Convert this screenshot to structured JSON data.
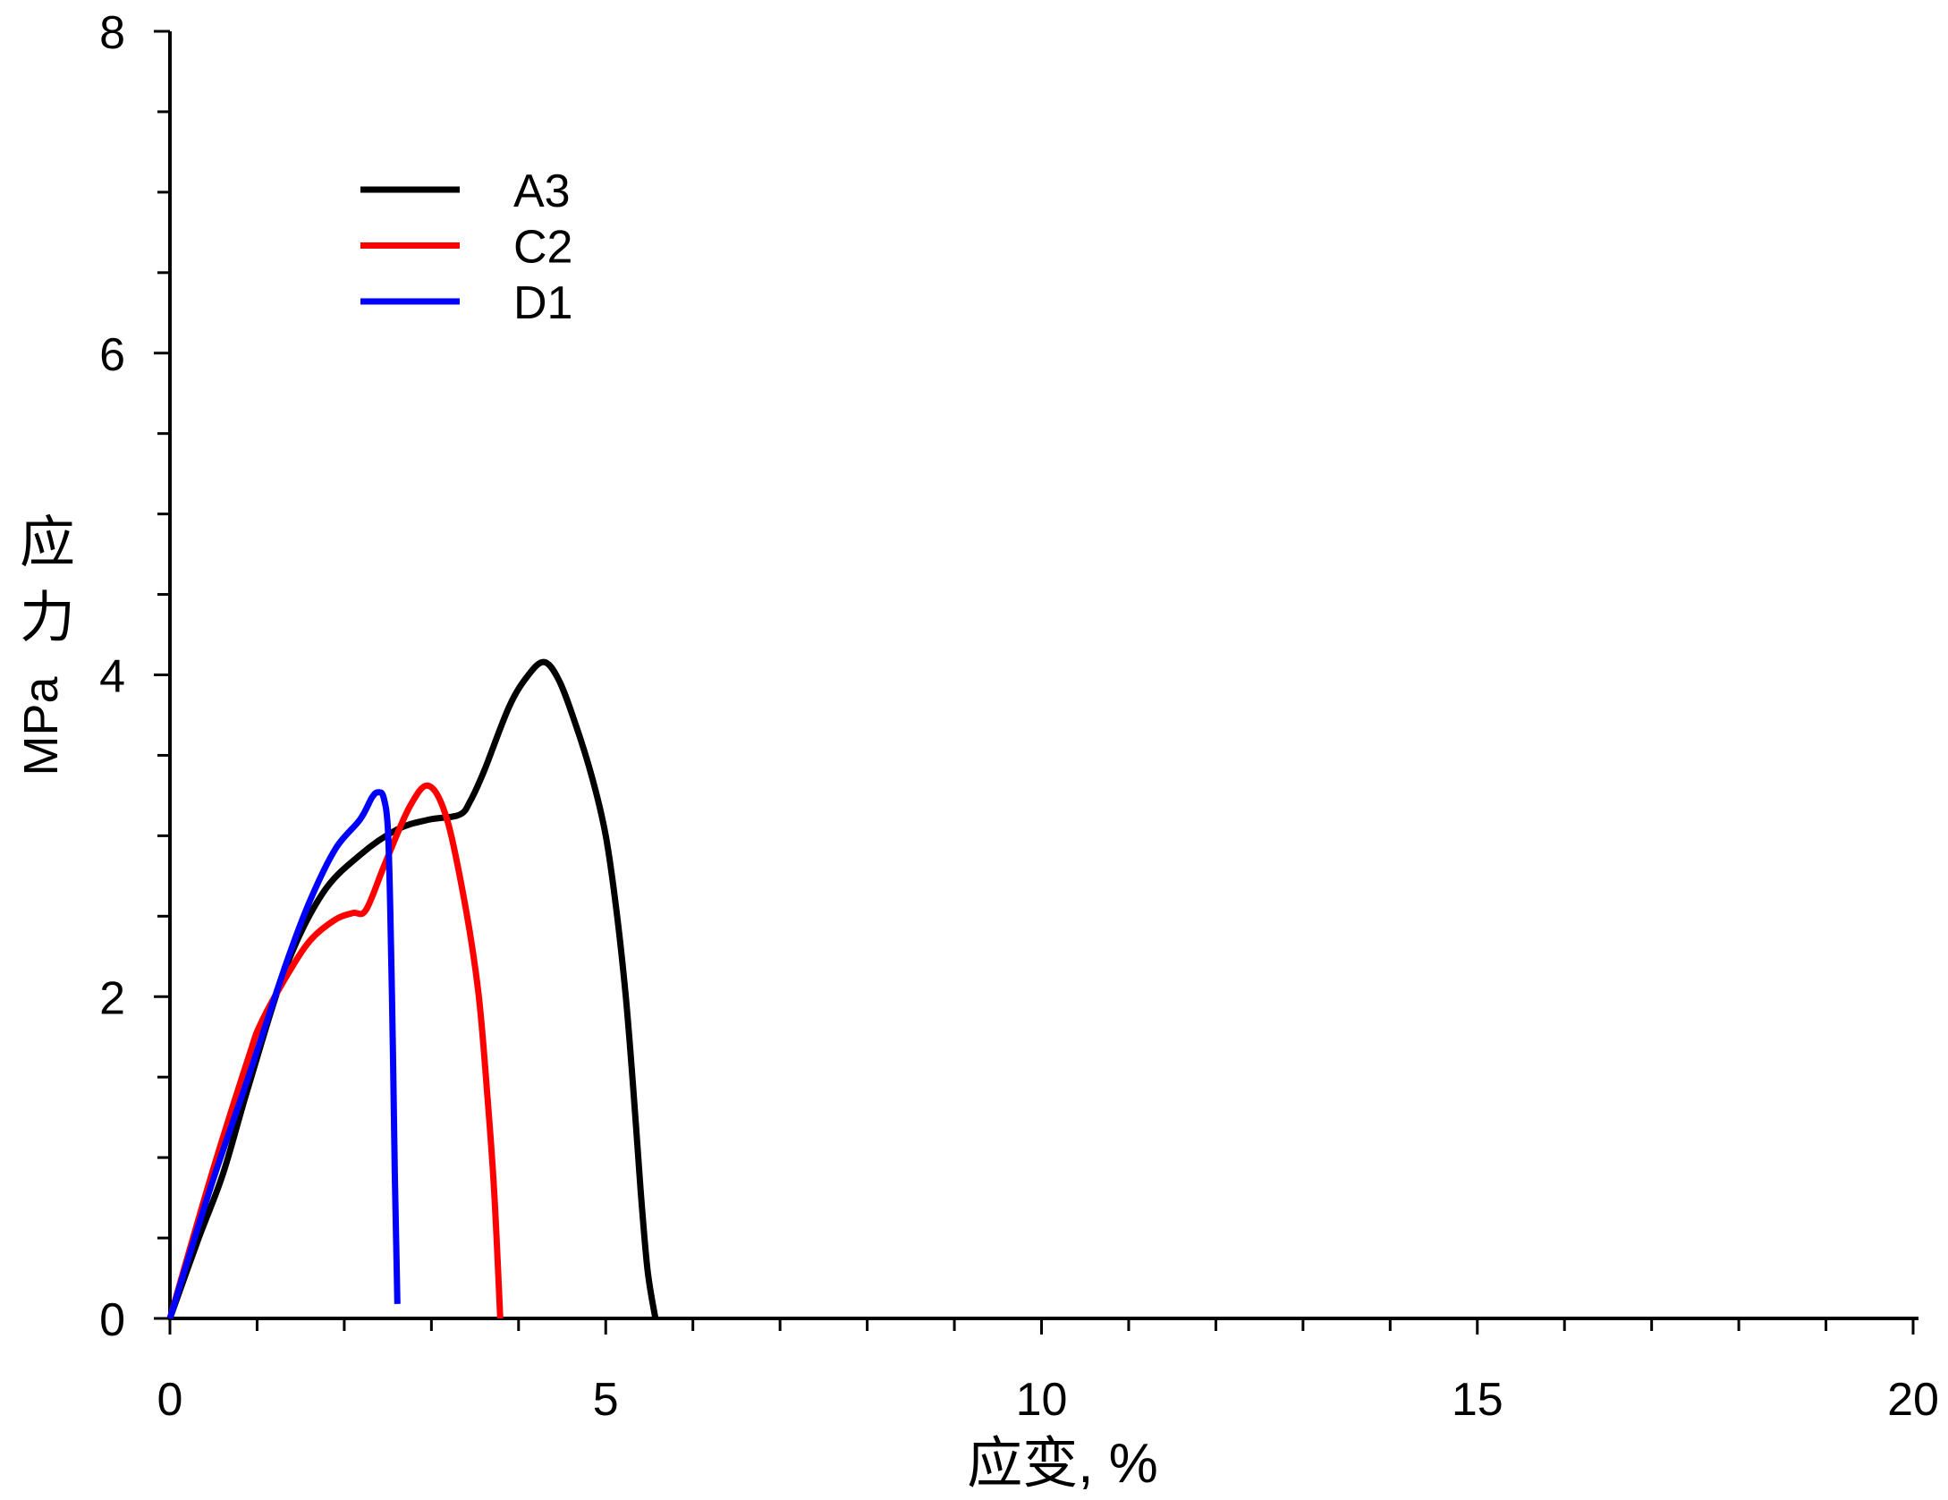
{
  "chart_data": {
    "type": "line",
    "title": "",
    "xlabel": "应变, %",
    "ylabel": "应力",
    "ylabel_unit": "MPa",
    "xlim": [
      0,
      20
    ],
    "ylim": [
      0,
      8
    ],
    "xticks": [
      0,
      5,
      10,
      15,
      20
    ],
    "xtick_labels": [
      "0",
      "5",
      "10",
      "15",
      "20"
    ],
    "yticks": [
      0,
      2,
      4,
      6,
      8
    ],
    "ytick_labels": [
      "0",
      "2",
      "4",
      "6",
      "8"
    ],
    "x_minor_step": 1,
    "y_minor_step": 0.5,
    "grid": false,
    "legend_position": "top-left",
    "axis_color": "#000000",
    "series": [
      {
        "name": "A3",
        "color": "#000000",
        "x": [
          0,
          0.33,
          0.61,
          0.9,
          1.33,
          1.75,
          2.18,
          2.61,
          2.97,
          3.32,
          3.45,
          3.61,
          3.89,
          4.1,
          4.29,
          4.46,
          4.65,
          4.85,
          5.0,
          5.12,
          5.23,
          5.32,
          5.4,
          5.48,
          5.57
        ],
        "y": [
          0,
          0.5,
          0.9,
          1.44,
          2.18,
          2.64,
          2.88,
          3.04,
          3.1,
          3.13,
          3.22,
          3.41,
          3.8,
          3.99,
          4.08,
          3.97,
          3.7,
          3.35,
          3.0,
          2.55,
          2.0,
          1.4,
          0.8,
          0.3,
          0
        ]
      },
      {
        "name": "C2",
        "color": "#ff0000",
        "x": [
          0,
          0.47,
          0.9,
          1.04,
          1.33,
          1.61,
          1.9,
          2.1,
          2.25,
          2.47,
          2.75,
          2.97,
          3.18,
          3.39,
          3.54,
          3.64,
          3.72,
          3.79
        ],
        "y": [
          0,
          0.88,
          1.62,
          1.83,
          2.12,
          2.35,
          2.48,
          2.52,
          2.54,
          2.83,
          3.18,
          3.31,
          3.1,
          2.56,
          2.02,
          1.4,
          0.79,
          0
        ]
      },
      {
        "name": "D1",
        "color": "#0000ff",
        "x": [
          0,
          0.47,
          0.9,
          1.33,
          1.61,
          1.9,
          2.18,
          2.32,
          2.39,
          2.45,
          2.5,
          2.53,
          2.56,
          2.58,
          2.6,
          2.61
        ],
        "y": [
          0,
          0.82,
          1.5,
          2.2,
          2.6,
          2.92,
          3.1,
          3.24,
          3.27,
          3.24,
          3.05,
          2.5,
          1.6,
          0.9,
          0.35,
          0.09
        ]
      }
    ]
  }
}
